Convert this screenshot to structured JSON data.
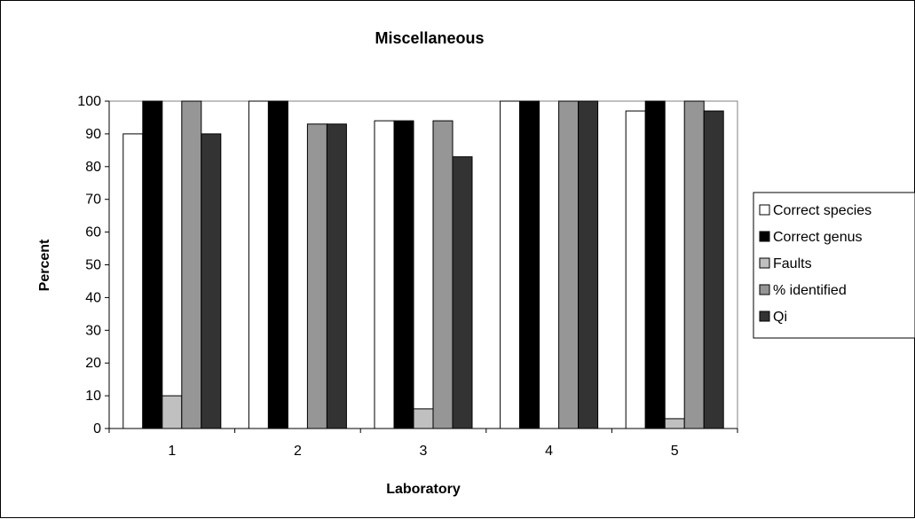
{
  "chart_data": {
    "type": "bar",
    "title": "Miscellaneous",
    "xlabel": "Laboratory",
    "ylabel": "Percent",
    "categories": [
      "1",
      "2",
      "3",
      "4",
      "5"
    ],
    "ylim": [
      0,
      100
    ],
    "yticks": [
      0,
      10,
      20,
      30,
      40,
      50,
      60,
      70,
      80,
      90,
      100
    ],
    "grid": false,
    "legend_position": "right",
    "series": [
      {
        "name": "Correct species",
        "color": "#ffffff",
        "values": [
          90,
          100,
          94,
          100,
          97
        ]
      },
      {
        "name": "Correct genus",
        "color": "#000000",
        "values": [
          100,
          100,
          94,
          100,
          100
        ]
      },
      {
        "name": "Faults",
        "color": "#c0c0c0",
        "values": [
          10,
          0,
          6,
          0,
          3
        ]
      },
      {
        "name": "% identified",
        "color": "#969696",
        "values": [
          100,
          93,
          94,
          100,
          100
        ]
      },
      {
        "name": "Qi",
        "color": "#333333",
        "values": [
          90,
          93,
          83,
          100,
          97
        ]
      }
    ]
  }
}
